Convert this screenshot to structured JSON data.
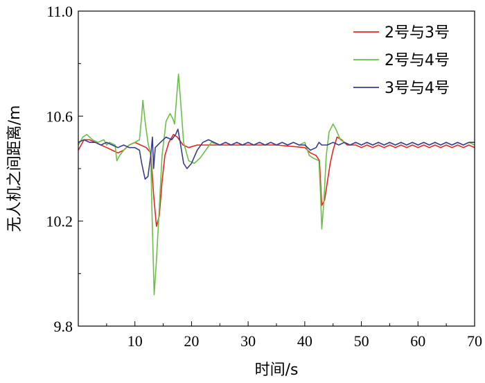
{
  "chart_data": {
    "type": "line",
    "title": "",
    "xlabel": "时间/s",
    "ylabel": "无人机之间距离/m",
    "xlim": [
      0,
      70
    ],
    "ylim": [
      9.8,
      11.0
    ],
    "xticks": [
      10,
      20,
      30,
      40,
      50,
      60,
      70
    ],
    "xtick_labels": [
      "10",
      "20",
      "30",
      "40",
      "50",
      "60",
      "70"
    ],
    "yticks": [
      9.8,
      10.2,
      10.6,
      11.0
    ],
    "ytick_labels": [
      "9.8",
      "10.2",
      "10.6",
      "11.0"
    ],
    "grid": false,
    "legend_position": "top-right",
    "series": [
      {
        "name": "2号与3号",
        "color": "#e8251c",
        "points": [
          [
            0,
            10.47
          ],
          [
            1,
            10.51
          ],
          [
            2,
            10.51
          ],
          [
            3,
            10.5
          ],
          [
            4,
            10.49
          ],
          [
            5,
            10.48
          ],
          [
            6,
            10.47
          ],
          [
            7,
            10.46
          ],
          [
            8,
            10.47
          ],
          [
            9,
            10.49
          ],
          [
            10,
            10.5
          ],
          [
            11,
            10.49
          ],
          [
            12,
            10.48
          ],
          [
            12.8,
            10.46
          ],
          [
            13.3,
            10.3
          ],
          [
            13.8,
            10.18
          ],
          [
            14.3,
            10.22
          ],
          [
            14.8,
            10.35
          ],
          [
            15.3,
            10.45
          ],
          [
            16,
            10.5
          ],
          [
            16.8,
            10.53
          ],
          [
            17.5,
            10.52
          ],
          [
            18.5,
            10.49
          ],
          [
            19.5,
            10.48
          ],
          [
            21,
            10.49
          ],
          [
            25,
            10.49
          ],
          [
            30,
            10.49
          ],
          [
            35,
            10.49
          ],
          [
            40,
            10.48
          ],
          [
            41,
            10.46
          ],
          [
            42,
            10.45
          ],
          [
            42.6,
            10.43
          ],
          [
            43,
            10.26
          ],
          [
            43.5,
            10.28
          ],
          [
            44,
            10.35
          ],
          [
            44.5,
            10.42
          ],
          [
            45,
            10.47
          ],
          [
            45.7,
            10.52
          ],
          [
            46.5,
            10.51
          ],
          [
            47.5,
            10.49
          ],
          [
            49,
            10.49
          ],
          [
            50,
            10.48
          ],
          [
            51,
            10.49
          ],
          [
            52,
            10.48
          ],
          [
            53,
            10.49
          ],
          [
            54,
            10.48
          ],
          [
            55,
            10.49
          ],
          [
            56,
            10.48
          ],
          [
            57,
            10.49
          ],
          [
            58,
            10.48
          ],
          [
            59,
            10.49
          ],
          [
            60,
            10.48
          ],
          [
            61,
            10.49
          ],
          [
            62,
            10.48
          ],
          [
            63,
            10.49
          ],
          [
            64,
            10.48
          ],
          [
            65,
            10.49
          ],
          [
            66,
            10.48
          ],
          [
            67,
            10.49
          ],
          [
            68,
            10.48
          ],
          [
            69,
            10.49
          ],
          [
            70,
            10.48
          ]
        ]
      },
      {
        "name": "2号与4号",
        "color": "#6abf46",
        "points": [
          [
            0,
            10.49
          ],
          [
            0.8,
            10.52
          ],
          [
            1.5,
            10.53
          ],
          [
            2.5,
            10.51
          ],
          [
            3.5,
            10.5
          ],
          [
            4.5,
            10.51
          ],
          [
            5,
            10.49
          ],
          [
            5.5,
            10.5
          ],
          [
            6.5,
            10.49
          ],
          [
            6.8,
            10.43
          ],
          [
            7.3,
            10.45
          ],
          [
            8,
            10.47
          ],
          [
            9,
            10.49
          ],
          [
            10,
            10.5
          ],
          [
            10.8,
            10.51
          ],
          [
            11.2,
            10.6
          ],
          [
            11.4,
            10.66
          ],
          [
            11.8,
            10.58
          ],
          [
            12.3,
            10.5
          ],
          [
            12.8,
            10.45
          ],
          [
            13,
            10.25
          ],
          [
            13.4,
            9.92
          ],
          [
            13.8,
            10.05
          ],
          [
            14.3,
            10.25
          ],
          [
            14.8,
            10.45
          ],
          [
            15.5,
            10.58
          ],
          [
            16.2,
            10.61
          ],
          [
            16.7,
            10.59
          ],
          [
            17,
            10.57
          ],
          [
            17.4,
            10.68
          ],
          [
            17.7,
            10.76
          ],
          [
            18.1,
            10.65
          ],
          [
            18.6,
            10.5
          ],
          [
            19.5,
            10.43
          ],
          [
            20.5,
            10.42
          ],
          [
            21.5,
            10.44
          ],
          [
            22.5,
            10.47
          ],
          [
            23.5,
            10.5
          ],
          [
            25,
            10.49
          ],
          [
            26,
            10.5
          ],
          [
            27,
            10.49
          ],
          [
            28,
            10.5
          ],
          [
            29,
            10.49
          ],
          [
            30,
            10.5
          ],
          [
            31,
            10.49
          ],
          [
            32,
            10.5
          ],
          [
            33,
            10.49
          ],
          [
            34,
            10.5
          ],
          [
            35,
            10.49
          ],
          [
            36,
            10.5
          ],
          [
            37,
            10.49
          ],
          [
            38,
            10.5
          ],
          [
            39,
            10.49
          ],
          [
            40,
            10.5
          ],
          [
            40.8,
            10.45
          ],
          [
            41.5,
            10.44
          ],
          [
            42.5,
            10.43
          ],
          [
            42.8,
            10.3
          ],
          [
            43,
            10.17
          ],
          [
            43.4,
            10.28
          ],
          [
            43.8,
            10.45
          ],
          [
            44.3,
            10.54
          ],
          [
            45,
            10.57
          ],
          [
            45.5,
            10.55
          ],
          [
            46.3,
            10.51
          ],
          [
            47,
            10.5
          ],
          [
            48,
            10.49
          ],
          [
            49,
            10.5
          ],
          [
            50,
            10.49
          ],
          [
            51,
            10.5
          ],
          [
            52,
            10.49
          ],
          [
            53,
            10.5
          ],
          [
            54,
            10.49
          ],
          [
            55,
            10.5
          ],
          [
            56,
            10.49
          ],
          [
            57,
            10.5
          ],
          [
            58,
            10.49
          ],
          [
            59,
            10.5
          ],
          [
            60,
            10.49
          ],
          [
            61,
            10.5
          ],
          [
            62,
            10.49
          ],
          [
            63,
            10.5
          ],
          [
            64,
            10.49
          ],
          [
            65,
            10.5
          ],
          [
            66,
            10.49
          ],
          [
            67,
            10.5
          ],
          [
            68,
            10.49
          ],
          [
            69,
            10.5
          ],
          [
            70,
            10.49
          ]
        ]
      },
      {
        "name": "3号与4号",
        "color": "#3a3a8f",
        "points": [
          [
            0,
            10.5
          ],
          [
            1,
            10.51
          ],
          [
            2,
            10.5
          ],
          [
            3,
            10.5
          ],
          [
            4,
            10.49
          ],
          [
            5,
            10.5
          ],
          [
            6,
            10.49
          ],
          [
            7,
            10.48
          ],
          [
            8,
            10.49
          ],
          [
            9,
            10.48
          ],
          [
            10,
            10.48
          ],
          [
            10.8,
            10.47
          ],
          [
            11.2,
            10.42
          ],
          [
            11.8,
            10.36
          ],
          [
            12.3,
            10.37
          ],
          [
            12.8,
            10.45
          ],
          [
            13.1,
            10.52
          ],
          [
            13.3,
            10.4
          ],
          [
            13.6,
            10.48
          ],
          [
            14.5,
            10.5
          ],
          [
            15.5,
            10.52
          ],
          [
            16.5,
            10.51
          ],
          [
            17.2,
            10.53
          ],
          [
            17.6,
            10.55
          ],
          [
            18,
            10.5
          ],
          [
            18.6,
            10.42
          ],
          [
            19.2,
            10.4
          ],
          [
            20,
            10.42
          ],
          [
            21,
            10.47
          ],
          [
            22,
            10.5
          ],
          [
            23,
            10.51
          ],
          [
            24,
            10.5
          ],
          [
            25,
            10.49
          ],
          [
            26,
            10.5
          ],
          [
            27,
            10.49
          ],
          [
            28,
            10.5
          ],
          [
            29,
            10.49
          ],
          [
            30,
            10.5
          ],
          [
            31,
            10.49
          ],
          [
            32,
            10.5
          ],
          [
            33,
            10.49
          ],
          [
            34,
            10.5
          ],
          [
            35,
            10.49
          ],
          [
            36,
            10.5
          ],
          [
            37,
            10.49
          ],
          [
            38,
            10.5
          ],
          [
            39,
            10.49
          ],
          [
            40,
            10.49
          ],
          [
            41,
            10.47
          ],
          [
            42,
            10.48
          ],
          [
            42.5,
            10.5
          ],
          [
            43,
            10.49
          ],
          [
            44,
            10.49
          ],
          [
            45,
            10.5
          ],
          [
            46,
            10.49
          ],
          [
            47,
            10.5
          ],
          [
            48,
            10.49
          ],
          [
            49,
            10.5
          ],
          [
            50,
            10.49
          ],
          [
            51,
            10.5
          ],
          [
            52,
            10.49
          ],
          [
            53,
            10.5
          ],
          [
            54,
            10.49
          ],
          [
            55,
            10.5
          ],
          [
            56,
            10.49
          ],
          [
            57,
            10.5
          ],
          [
            58,
            10.49
          ],
          [
            59,
            10.5
          ],
          [
            60,
            10.49
          ],
          [
            61,
            10.5
          ],
          [
            62,
            10.49
          ],
          [
            63,
            10.5
          ],
          [
            64,
            10.49
          ],
          [
            65,
            10.5
          ],
          [
            66,
            10.49
          ],
          [
            67,
            10.5
          ],
          [
            68,
            10.49
          ],
          [
            69,
            10.5
          ],
          [
            70,
            10.5
          ]
        ]
      }
    ]
  }
}
